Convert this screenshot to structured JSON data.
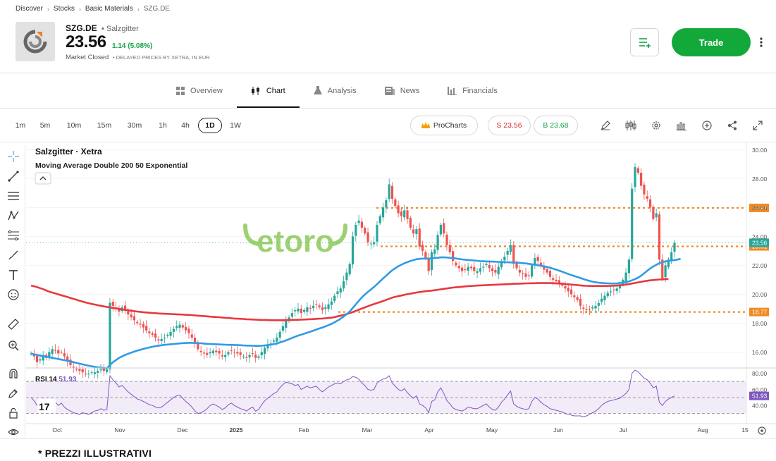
{
  "breadcrumb": [
    "Discover",
    "Stocks",
    "Basic Materials",
    "SZG.DE"
  ],
  "header": {
    "ticker": "SZG.DE",
    "company": "Salzgitter",
    "price": "23.56",
    "change": "1.14 (5.08%)",
    "status": "Market Closed",
    "delayed_note": "DELAYED PRICES BY XETRA, IN EUR",
    "trade_label": "Trade"
  },
  "tabs": [
    {
      "label": "Overview",
      "icon": "overview-icon"
    },
    {
      "label": "Chart",
      "icon": "candlestick-icon",
      "active": true
    },
    {
      "label": "Analysis",
      "icon": "flask-icon"
    },
    {
      "label": "News",
      "icon": "news-icon"
    },
    {
      "label": "Financials",
      "icon": "bar-chart-icon"
    }
  ],
  "timeframes": [
    "1m",
    "5m",
    "10m",
    "15m",
    "30m",
    "1h",
    "4h",
    "1D",
    "1W"
  ],
  "active_timeframe": "1D",
  "prochart_label": "ProCharts",
  "sell_label": "S 23.56",
  "buy_label": "B 23.68",
  "footer_note": "* PREZZI ILLUSTRATIVI",
  "colors": {
    "up": "#26a69a",
    "down": "#ef5350",
    "ma200": "#e8383d",
    "ma50": "#2f9be6",
    "level": "#f08a24",
    "rsi": "#7e57c2",
    "trade": "#13a83a"
  },
  "chart_data": {
    "type": "line",
    "title": "Salzgitter · Xetra",
    "indicator_label": "Moving Average Double 200 50 Exponential",
    "watermark": "etoro",
    "x_ticks": [
      "Oct",
      "Nov",
      "Dec",
      "2025",
      "Feb",
      "Mar",
      "Apr",
      "May",
      "Jun",
      "Jul",
      "Aug",
      "15"
    ],
    "ylim": [
      15,
      30.5
    ],
    "y_ticks": [
      "16.00",
      "18.00",
      "20.00",
      "22.00",
      "24.00",
      "26.00",
      "28.00",
      "30.00"
    ],
    "price_labels": {
      "last": "23.56",
      "level_1": "25.97",
      "level_2": "23.31",
      "level_3": "18.77"
    },
    "horizontal_levels": [
      25.97,
      23.31,
      18.77
    ],
    "series": [
      {
        "key": "price",
        "values": [
          15.9,
          15.7,
          15.3,
          15.5,
          15.8,
          15.6,
          16.0,
          16.2,
          16.1,
          15.9,
          16.0,
          15.7,
          15.4,
          15.1,
          14.9,
          14.8,
          14.7,
          14.6,
          14.5,
          14.5,
          14.6,
          14.6,
          14.7,
          14.8,
          14.7,
          14.8,
          19.4,
          19.2,
          19.0,
          18.8,
          19.1,
          18.9,
          18.6,
          18.4,
          18.2,
          18.0,
          17.9,
          17.7,
          17.5,
          17.3,
          17.2,
          17.0,
          16.8,
          16.9,
          17.0,
          17.2,
          17.4,
          17.6,
          17.8,
          17.9,
          17.7,
          17.5,
          17.3,
          17.0,
          16.6,
          16.2,
          16.0,
          15.9,
          15.8,
          16.0,
          16.1,
          16.0,
          15.9,
          15.7,
          15.8,
          16.0,
          16.1,
          16.0,
          15.9,
          15.8,
          15.7,
          15.6,
          15.8,
          15.9,
          15.6,
          15.7,
          16.0,
          16.3,
          16.5,
          16.6,
          16.8,
          17.0,
          17.4,
          17.8,
          18.2,
          18.4,
          18.7,
          18.9,
          19.0,
          18.7,
          18.9,
          19.1,
          19.0,
          19.2,
          19.3,
          19.1,
          18.9,
          19.1,
          19.3,
          19.5,
          19.9,
          20.2,
          20.4,
          20.9,
          21.5,
          22.1,
          24.0,
          24.8,
          25.1,
          24.6,
          24.2,
          23.6,
          23.5,
          23.6,
          24.8,
          25.4,
          26.0,
          26.5,
          27.6,
          26.6,
          26.1,
          25.6,
          25.4,
          25.8,
          25.2,
          24.6,
          24.2,
          24.5,
          23.3,
          23.0,
          22.5,
          21.6,
          22.9,
          23.1,
          24.1,
          24.8,
          24.2,
          23.4,
          22.9,
          22.3,
          22.0,
          21.8,
          21.6,
          21.7,
          21.9,
          21.8,
          21.6,
          21.6,
          21.8,
          21.9,
          22.1,
          21.8,
          21.6,
          21.5,
          21.9,
          22.3,
          22.6,
          23.0,
          23.4,
          22.1,
          21.8,
          21.5,
          21.4,
          21.2,
          21.3,
          22.0,
          22.5,
          22.3,
          22.0,
          21.7,
          21.5,
          21.2,
          21.0,
          20.9,
          20.8,
          20.6,
          20.4,
          20.2,
          20.0,
          19.8,
          19.6,
          19.2,
          19.0,
          18.9,
          18.9,
          19.1,
          19.2,
          19.4,
          19.7,
          19.9,
          20.1,
          20.2,
          20.3,
          20.4,
          20.6,
          21.0,
          21.5,
          22.4,
          27.3,
          28.8,
          28.4,
          27.5,
          26.9,
          26.6,
          26.0,
          25.2,
          25.6,
          22.4,
          21.1,
          22.0,
          22.4,
          22.9,
          23.56
        ]
      },
      {
        "name": "EMA 200",
        "values": [
          20.6,
          20.55,
          20.5,
          20.42,
          20.35,
          20.26,
          20.18,
          20.12,
          20.06,
          19.99,
          19.93,
          19.87,
          19.81,
          19.74,
          19.68,
          19.62,
          19.55,
          19.49,
          19.43,
          19.38,
          19.33,
          19.29,
          19.24,
          19.2,
          19.16,
          19.12,
          19.09,
          19.05,
          19.02,
          18.99,
          18.95,
          18.92,
          18.89,
          18.86,
          18.83,
          18.8,
          18.78,
          18.76,
          18.74,
          18.72,
          18.7,
          18.69,
          18.67,
          18.66,
          18.65,
          18.64,
          18.63,
          18.62,
          18.61,
          18.6,
          18.59,
          18.58,
          18.57,
          18.56,
          18.54,
          18.52,
          18.5,
          18.49,
          18.47,
          18.45,
          18.44,
          18.42,
          18.41,
          18.39,
          18.37,
          18.36,
          18.34,
          18.32,
          18.31,
          18.3,
          18.29,
          18.27,
          18.26,
          18.25,
          18.24,
          18.23,
          18.22,
          18.22,
          18.21,
          18.2,
          18.2,
          18.2,
          18.2,
          18.2,
          18.21,
          18.21,
          18.22,
          18.23,
          18.23,
          18.24,
          18.25,
          18.26,
          18.27,
          18.28,
          18.3,
          18.31,
          18.32,
          18.34,
          18.36,
          18.38,
          18.42,
          18.47,
          18.52,
          18.57,
          18.63,
          18.69,
          18.77,
          18.85,
          18.93,
          19.01,
          19.09,
          19.17,
          19.25,
          19.32,
          19.39,
          19.46,
          19.53,
          19.61,
          19.69,
          19.76,
          19.82,
          19.87,
          19.91,
          19.96,
          20.0,
          20.04,
          20.08,
          20.12,
          20.15,
          20.18,
          20.21,
          20.23,
          20.25,
          20.28,
          20.31,
          20.34,
          20.37,
          20.4,
          20.43,
          20.46,
          20.48,
          20.5,
          20.52,
          20.54,
          20.56,
          20.57,
          20.58,
          20.6,
          20.61,
          20.62,
          20.63,
          20.64,
          20.65,
          20.66,
          20.67,
          20.68,
          20.69,
          20.7,
          20.71,
          20.72,
          20.72,
          20.73,
          20.74,
          20.75,
          20.75,
          20.76,
          20.76,
          20.77,
          20.77,
          20.77,
          20.77,
          20.77,
          20.76,
          20.75,
          20.74,
          20.72,
          20.7,
          20.69,
          20.67,
          20.65,
          20.63,
          20.61,
          20.59,
          20.58,
          20.57,
          20.57,
          20.57,
          20.57,
          20.57,
          20.57,
          20.57,
          20.58,
          20.59,
          20.6,
          20.62,
          20.64,
          20.67,
          20.7,
          20.74,
          20.78,
          20.82,
          20.86,
          20.9,
          20.93,
          20.96,
          20.98,
          21.0,
          21.02,
          21.03,
          21.05,
          21.06
        ]
      },
      {
        "name": "EMA 50",
        "values": [
          15.9,
          15.85,
          15.8,
          15.76,
          15.72,
          15.68,
          15.64,
          15.6,
          15.56,
          15.52,
          15.48,
          15.44,
          15.4,
          15.35,
          15.3,
          15.25,
          15.2,
          15.15,
          15.1,
          15.06,
          15.02,
          14.98,
          14.94,
          14.92,
          14.9,
          14.88,
          15.1,
          15.3,
          15.45,
          15.6,
          15.7,
          15.8,
          15.88,
          15.96,
          16.03,
          16.1,
          16.16,
          16.22,
          16.27,
          16.32,
          16.37,
          16.41,
          16.44,
          16.47,
          16.5,
          16.52,
          16.54,
          16.56,
          16.58,
          16.6,
          16.62,
          16.63,
          16.64,
          16.64,
          16.63,
          16.62,
          16.61,
          16.59,
          16.57,
          16.56,
          16.55,
          16.54,
          16.53,
          16.52,
          16.51,
          16.5,
          16.5,
          16.49,
          16.48,
          16.47,
          16.46,
          16.45,
          16.45,
          16.44,
          16.43,
          16.43,
          16.44,
          16.46,
          16.48,
          16.51,
          16.55,
          16.6,
          16.66,
          16.73,
          16.81,
          16.89,
          16.98,
          17.06,
          17.14,
          17.2,
          17.27,
          17.34,
          17.41,
          17.48,
          17.56,
          17.63,
          17.7,
          17.78,
          17.86,
          17.95,
          18.06,
          18.18,
          18.31,
          18.46,
          18.62,
          18.8,
          19.05,
          19.3,
          19.55,
          19.78,
          19.98,
          20.16,
          20.33,
          20.5,
          20.7,
          20.9,
          21.1,
          21.28,
          21.48,
          21.66,
          21.8,
          21.93,
          22.04,
          22.14,
          22.22,
          22.3,
          22.36,
          22.42,
          22.45,
          22.46,
          22.47,
          22.46,
          22.48,
          22.5,
          22.52,
          22.55,
          22.55,
          22.54,
          22.52,
          22.5,
          22.47,
          22.44,
          22.41,
          22.39,
          22.37,
          22.35,
          22.33,
          22.31,
          22.29,
          22.28,
          22.27,
          22.26,
          22.26,
          22.25,
          22.24,
          22.23,
          22.22,
          22.21,
          22.2,
          22.2,
          22.19,
          22.17,
          22.15,
          22.13,
          22.1,
          22.07,
          22.04,
          22.01,
          21.97,
          21.93,
          21.88,
          21.83,
          21.77,
          21.7,
          21.63,
          21.56,
          21.48,
          21.4,
          21.33,
          21.26,
          21.19,
          21.12,
          21.05,
          20.98,
          20.92,
          20.87,
          20.83,
          20.8,
          20.78,
          20.76,
          20.75,
          20.74,
          20.74,
          20.75,
          20.77,
          20.8,
          20.84,
          20.89,
          20.96,
          21.05,
          21.15,
          21.28,
          21.45,
          21.62,
          21.78,
          21.92,
          22.04,
          22.15,
          22.22,
          22.27,
          22.3,
          22.33,
          22.36,
          22.4,
          22.45
        ]
      },
      {
        "name": "RSI 14",
        "current": "51.93",
        "ylim": [
          20,
          85
        ],
        "y_ticks": [
          "40.00",
          "60.00",
          "80.00"
        ],
        "bands": [
          30,
          70
        ],
        "values": [
          50,
          46,
          40,
          43,
          48,
          42,
          45,
          47,
          44,
          40,
          43,
          38,
          35,
          33,
          31,
          30,
          29,
          31,
          30,
          29,
          31,
          33,
          34,
          36,
          34,
          35,
          77,
          72,
          68,
          63,
          65,
          61,
          57,
          54,
          51,
          48,
          47,
          45,
          43,
          41,
          40,
          38,
          37,
          38,
          41,
          44,
          47,
          50,
          52,
          53,
          49,
          45,
          42,
          38,
          33,
          30,
          31,
          33,
          36,
          40,
          42,
          40,
          38,
          35,
          37,
          41,
          43,
          40,
          38,
          36,
          35,
          33,
          36,
          38,
          33,
          35,
          41,
          46,
          49,
          52,
          55,
          57,
          62,
          66,
          69,
          68,
          67,
          65,
          66,
          60,
          62,
          64,
          62,
          63,
          64,
          60,
          57,
          60,
          63,
          65,
          67,
          68,
          67,
          70,
          72,
          73,
          76,
          75,
          73,
          68,
          65,
          60,
          59,
          60,
          68,
          71,
          73,
          74,
          77,
          68,
          64,
          60,
          58,
          61,
          56,
          52,
          49,
          52,
          42,
          40,
          37,
          31,
          45,
          47,
          57,
          62,
          55,
          46,
          42,
          37,
          35,
          34,
          33,
          35,
          38,
          37,
          36,
          36,
          38,
          40,
          42,
          38,
          35,
          34,
          38,
          44,
          48,
          53,
          58,
          42,
          39,
          37,
          36,
          35,
          36,
          45,
          50,
          48,
          44,
          41,
          39,
          36,
          35,
          34,
          33,
          32,
          30,
          29,
          28,
          27,
          27,
          27,
          26,
          27,
          29,
          31,
          33,
          36,
          40,
          43,
          45,
          46,
          47,
          48,
          49,
          52,
          55,
          60,
          80,
          84,
          82,
          78,
          74,
          72,
          68,
          62,
          64,
          44,
          40,
          45,
          48,
          50,
          51.93
        ]
      }
    ]
  }
}
